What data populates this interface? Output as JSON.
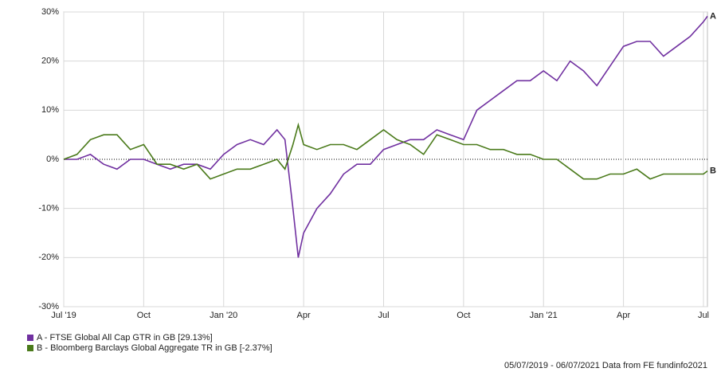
{
  "chart_data": {
    "type": "line",
    "x": [
      0,
      0.5,
      1,
      1.5,
      2,
      2.5,
      3,
      3.5,
      4,
      4.5,
      5,
      5.5,
      6,
      6.5,
      7,
      7.5,
      8,
      8.3,
      8.6,
      8.8,
      9,
      9.5,
      10,
      10.5,
      11,
      11.5,
      12,
      12.5,
      13,
      13.5,
      14,
      14.5,
      15,
      15.5,
      16,
      16.5,
      17,
      17.5,
      18,
      18.5,
      19,
      19.5,
      20,
      20.5,
      21,
      21.5,
      22,
      22.5,
      23,
      23.5,
      24,
      24.15
    ],
    "series": [
      {
        "name": "A - FTSE Global All Cap GTR in GB [29.13%]",
        "label": "A",
        "color": "#7030a0",
        "values": [
          0,
          0,
          1,
          -1,
          -2,
          0,
          0,
          -1,
          -2,
          -1,
          -1,
          -2,
          1,
          3,
          4,
          3,
          6,
          4,
          -10,
          -20,
          -15,
          -10,
          -7,
          -3,
          -1,
          -1,
          2,
          3,
          4,
          4,
          6,
          5,
          4,
          10,
          12,
          14,
          16,
          16,
          18,
          16,
          20,
          18,
          15,
          19,
          23,
          24,
          24,
          21,
          23,
          25,
          28,
          29.13
        ]
      },
      {
        "name": "B - Bloomberg Barclays Global Aggregate TR in GB [-2.37%]",
        "label": "B",
        "color": "#4a7a1a",
        "values": [
          0,
          1,
          4,
          5,
          5,
          2,
          3,
          -1,
          -1,
          -2,
          -1,
          -4,
          -3,
          -2,
          -2,
          -1,
          0,
          -2,
          3,
          7,
          3,
          2,
          3,
          3,
          2,
          4,
          6,
          4,
          3,
          1,
          5,
          4,
          3,
          3,
          2,
          2,
          1,
          1,
          0,
          0,
          -2,
          -4,
          -4,
          -3,
          -3,
          -2,
          -4,
          -3,
          -3,
          -3,
          -3,
          -2.37
        ]
      }
    ],
    "xlim": [
      0,
      24.15
    ],
    "xticks": [
      {
        "value": 0,
        "label": "Jul '19"
      },
      {
        "value": 3,
        "label": "Oct"
      },
      {
        "value": 6,
        "label": "Jan '20"
      },
      {
        "value": 9,
        "label": "Apr"
      },
      {
        "value": 12,
        "label": "Jul"
      },
      {
        "value": 15,
        "label": "Oct"
      },
      {
        "value": 18,
        "label": "Jan '21"
      },
      {
        "value": 21,
        "label": "Apr"
      },
      {
        "value": 24,
        "label": "Jul"
      }
    ],
    "ylim": [
      -30,
      30
    ],
    "yticks": [
      {
        "value": -30,
        "label": "-30%"
      },
      {
        "value": -20,
        "label": "-20%"
      },
      {
        "value": -10,
        "label": "-10%"
      },
      {
        "value": 0,
        "label": "0%"
      },
      {
        "value": 10,
        "label": "10%"
      },
      {
        "value": 20,
        "label": "20%"
      },
      {
        "value": 30,
        "label": "30%"
      }
    ],
    "grid": true,
    "footer": "05/07/2019 - 06/07/2021 Data from FE fundinfo2021"
  }
}
